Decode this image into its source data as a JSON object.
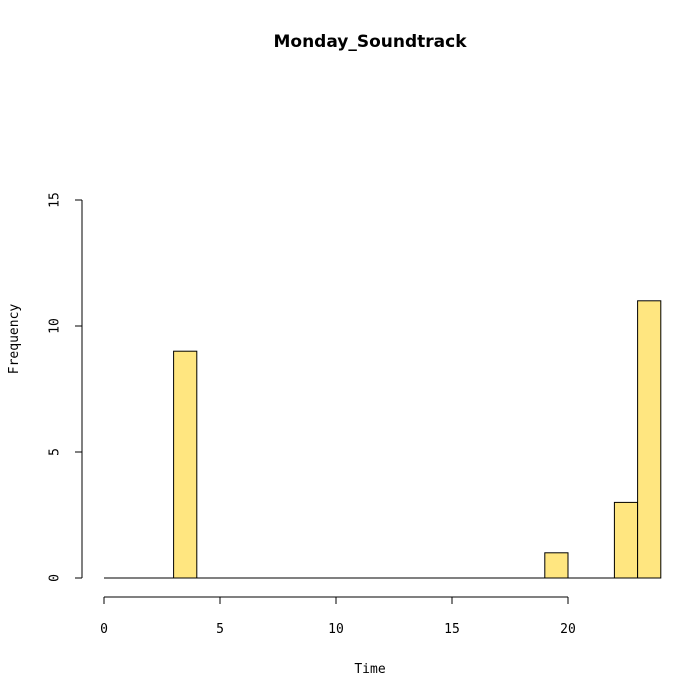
{
  "chart_data": {
    "type": "bar",
    "title": "Monday_Soundtrack",
    "xlabel": "Time",
    "ylabel": "Frequency",
    "bin_width": 1,
    "xlim": [
      0,
      24
    ],
    "ylim": [
      0,
      15
    ],
    "xticks": [
      0,
      5,
      10,
      15,
      20
    ],
    "yticks": [
      0,
      5,
      10,
      15
    ],
    "bins": [
      {
        "x0": 0,
        "x1": 1,
        "count": 0
      },
      {
        "x0": 1,
        "x1": 2,
        "count": 0
      },
      {
        "x0": 2,
        "x1": 3,
        "count": 0
      },
      {
        "x0": 3,
        "x1": 4,
        "count": 9
      },
      {
        "x0": 4,
        "x1": 5,
        "count": 0
      },
      {
        "x0": 5,
        "x1": 6,
        "count": 0
      },
      {
        "x0": 6,
        "x1": 7,
        "count": 0
      },
      {
        "x0": 7,
        "x1": 8,
        "count": 0
      },
      {
        "x0": 8,
        "x1": 9,
        "count": 0
      },
      {
        "x0": 9,
        "x1": 10,
        "count": 0
      },
      {
        "x0": 10,
        "x1": 11,
        "count": 0
      },
      {
        "x0": 11,
        "x1": 12,
        "count": 0
      },
      {
        "x0": 12,
        "x1": 13,
        "count": 0
      },
      {
        "x0": 13,
        "x1": 14,
        "count": 0
      },
      {
        "x0": 14,
        "x1": 15,
        "count": 0
      },
      {
        "x0": 15,
        "x1": 16,
        "count": 0
      },
      {
        "x0": 16,
        "x1": 17,
        "count": 0
      },
      {
        "x0": 17,
        "x1": 18,
        "count": 0
      },
      {
        "x0": 18,
        "x1": 19,
        "count": 0
      },
      {
        "x0": 19,
        "x1": 20,
        "count": 1
      },
      {
        "x0": 20,
        "x1": 21,
        "count": 0
      },
      {
        "x0": 21,
        "x1": 22,
        "count": 0
      },
      {
        "x0": 22,
        "x1": 23,
        "count": 3
      },
      {
        "x0": 23,
        "x1": 24,
        "count": 11
      }
    ],
    "bar_color": "#FFE680",
    "grid": false
  }
}
